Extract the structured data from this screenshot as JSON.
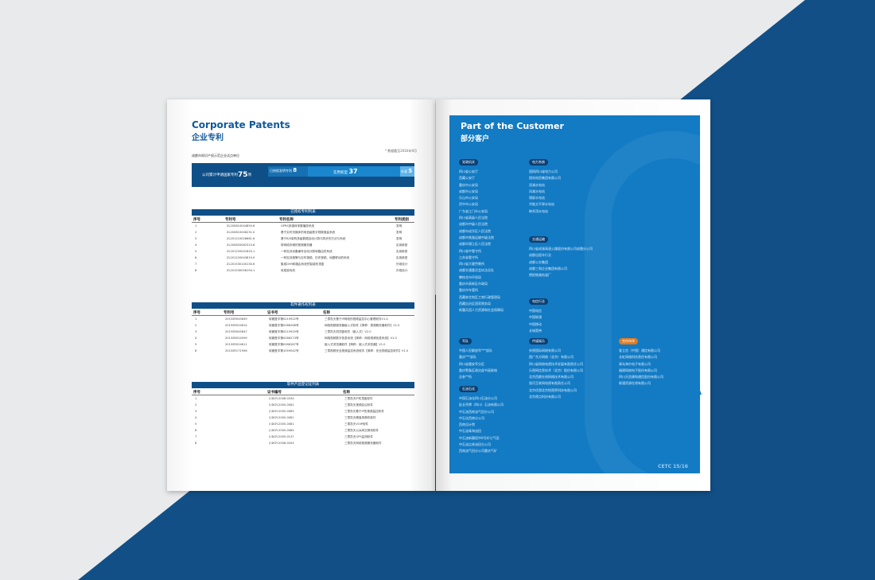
{
  "left": {
    "title_en": "Corporate Patents",
    "title_cn": "企业专利",
    "subtitle": "成都市知识产权示范企业试点单位",
    "note": "* 数据截至2016年9月",
    "stats": {
      "total": "公司累计申请国家专利",
      "total_num": "75",
      "unit": "项",
      "invent": "已授权发明专利",
      "invent_num": "8",
      "utility": "实用新型",
      "utility_num": "37",
      "design": "外观",
      "design_num": "5"
    },
    "table1": {
      "title": "已授权专利列表",
      "cols": [
        "序号",
        "专利号",
        "专利名称",
        "专利类别"
      ],
      "rows": [
        [
          "1",
          "ZL200810044850.6",
          "GPRS多媒体采集播放系统",
          "发明"
        ],
        [
          "2",
          "ZL200810046231.0",
          "基于实时流媒体的电信级数字视频遥监系统",
          "发明"
        ],
        [
          "3",
          "ZL201210028661.6",
          "基于B/S架构多级数据自动计算与同步的方法与系统",
          "发明"
        ],
        [
          "4",
          "ZL200820062310.6",
          "带网络存储的视频服务器",
          "实用新型"
        ],
        [
          "5",
          "ZL201220041820.1",
          "一种支持设备编号自动分配和路由的系统",
          "实用新型"
        ],
        [
          "6",
          "ZL201220043819.9",
          "一种支持报警与实时视频、历史视频、地图联动的系统",
          "实用新型"
        ],
        [
          "7",
          "ZL201530140130.6",
          "集成DVR和路由系统的智能机顶盒",
          "外观设计"
        ],
        [
          "8",
          "ZL201530058194.1",
          "电视游戏机",
          "外观设计"
        ]
      ]
    },
    "table2": {
      "title": "软件著作权列表",
      "cols": [
        "序号",
        "专利号",
        "证书号",
        "名称"
      ],
      "rows": [
        [
          "1",
          "2015SR045649",
          "软著登字第0219922号",
          "三零凯天基于IP网络的视频监控中心管理软件V1.4"
        ],
        [
          "2",
          "2015SR024614",
          "软著登字第0288268号",
          "网络视频服务器嵌入式软件【简称：视频服务器软件】V1.0"
        ],
        [
          "3",
          "2015SR045647",
          "软著登字第0219920号",
          "三零凯天机顶盒软件（嵌入式）V2.0"
        ],
        [
          "4",
          "2015SR024599",
          "软著登字第0288273号",
          "网络视频数字信息系统【简称：网络视频信息系统】V1.0"
        ],
        [
          "5",
          "2015SR024611",
          "软著登字第0288287号",
          "嵌入式浏览器软件【简称：嵌入式浏览器】V1.0"
        ],
        [
          "6",
          "2015SR171956",
          "软著登字第1059042号",
          "三零视频安全视频监控系统软件【简称：安全视频监控软件】V1.0"
        ]
      ]
    },
    "table3": {
      "title": "软件产品登记证列表",
      "cols": [
        "序号",
        "证书编号",
        "名称"
      ],
      "rows": [
        [
          "1",
          "川DGY-2008-0334",
          "三零凯天IP机顶盒软件"
        ],
        [
          "2",
          "川DGY-2005-0082",
          "三零凯天视频会议软件"
        ],
        [
          "3",
          "川DGY-2005-0085",
          "三零凯天基于IP的视频监控软件"
        ],
        [
          "4",
          "川DGY-2005-0081",
          "三零凯天硬盘录像机软件"
        ],
        [
          "5",
          "川DGY-2005-0081",
          "三零凯天VOIP软件"
        ],
        [
          "6",
          "川DGY-2005-0084",
          "三零凯天以太网交换机软件"
        ],
        [
          "7",
          "川DGY-2005-0137",
          "三零凯天GPS监测软件"
        ],
        [
          "8",
          "川DGY-2006-0204",
          "三零凯天网络视频服务器软件"
        ]
      ]
    }
  },
  "right": {
    "title_en": "Part of the Customer",
    "title_cn": "部分客户",
    "page": "CETC 15/16",
    "groups": [
      {
        "name": "党政机关",
        "items": [
          "四川省公安厅",
          "西藏公安厅",
          "重庆市公安局",
          "成都市公安局",
          "乐山市公安局",
          "资中市公安局",
          "广东省江门市公安局",
          "四川省高级人民法院",
          "成都市中级人民法院",
          "成都市成华区人民法院",
          "成都市铁路运输中级法院",
          "成都市锦江区人民法院",
          "四川省中看守所",
          "江苏省看守所",
          "四川省大健劳教所",
          "成都交通委员会执法总队",
          "攀枝花市环保局",
          "重庆市高新区市政局",
          "重庆市车管所",
          "西藏林芝地区工商行政管理局",
          "西藏自治区国家税务局",
          "新疆兵团人力资源和社会保障局"
        ]
      },
      {
        "name": "电力系统",
        "items": [
          "国网四川省电力公司",
          "国电电投集团有限公司",
          "双滩水电站",
          "凤滩水电站",
          "锦屏水电站",
          "华能太平驿水电站",
          "映秀湾水电站"
        ]
      },
      {
        "name": "交通运输",
        "items": [
          "四川省成渝高速公路股份有限公司成雅分公司",
          "成都出租车行业",
          "成都公交集团",
          "成都三和企业集团有限公司",
          "德阳铁路轨道厂"
        ]
      },
      {
        "name": "电信行业",
        "items": [
          "中国电信",
          "中国联通",
          "中国移动",
          "长城宽带"
        ]
      },
      {
        "name": "军队",
        "items": [
          "中国人民解放军***部队",
          "重庆***部队",
          "四川省雅安军分区",
          "重庆警备区政治部书画联络",
          "总参**所"
        ]
      },
      {
        "name": "石油石化",
        "items": [
          "中国石油化四川石油分公司",
          "延长壳牌（四川）石油有限公司",
          "中石油西南油气田分公司",
          "中石化西南分公司",
          "西南设计院",
          "中石油青海油田",
          "中石油新疆塔中6号轩七气田",
          "中石油吉林油田分公司",
          "西南油气田分公司重庆气矿"
        ]
      },
      {
        "name": "传媒娱乐",
        "items": [
          "央视国际网络有限公司",
          "国广东方网络（北京）有限公司",
          "四川省网络电视技术发展有限责任公司",
          "乐视网信息技术（北京）股份有限公司",
          "北京西都在线网络技术有限公司",
          "银河互联网电视有限责任公司",
          "北京优朋北京悦视界科技有限公司",
          "北京视点科技有限公司"
        ]
      },
      {
        "name": "合作伙伴",
        "items": [
          "爱立信（中国）通信有限公司",
          "长虹网络科技责任有限公司",
          "青岛海尔电子有限公司",
          "福建网络电子股份有限公司",
          "四川天邑康和通信股份有限公司",
          "联通资源在线有限公司"
        ]
      }
    ]
  },
  "colors": {
    "brand": "#0f4f87",
    "right_panel": "#137bc4",
    "partner_tag": "#e07b20",
    "background_blue": "#114f86"
  }
}
